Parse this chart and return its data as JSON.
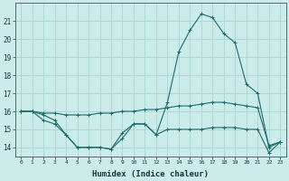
{
  "xlabel": "Humidex (Indice chaleur)",
  "background_color": "#ccecea",
  "grid_color": "#aad4d0",
  "line_color": "#1a6b6b",
  "x": [
    0,
    1,
    2,
    3,
    4,
    5,
    6,
    7,
    8,
    9,
    10,
    11,
    12,
    13,
    14,
    15,
    16,
    17,
    18,
    19,
    20,
    21,
    22,
    23
  ],
  "line_main": [
    16.0,
    16.0,
    15.8,
    15.5,
    14.7,
    14.0,
    14.0,
    14.0,
    13.9,
    14.8,
    15.3,
    15.3,
    14.7,
    16.5,
    19.3,
    20.5,
    21.4,
    21.2,
    20.3,
    19.8,
    17.5,
    17.0,
    14.0,
    14.3
  ],
  "line_upper": [
    16.0,
    16.0,
    15.9,
    15.9,
    15.8,
    15.8,
    15.8,
    15.9,
    15.9,
    16.0,
    16.0,
    16.1,
    16.1,
    16.2,
    16.3,
    16.3,
    16.4,
    16.5,
    16.5,
    16.4,
    16.3,
    16.2,
    14.1,
    14.3
  ],
  "line_lower": [
    16.0,
    16.0,
    15.5,
    15.3,
    14.7,
    14.0,
    14.0,
    14.0,
    13.9,
    14.5,
    15.3,
    15.3,
    14.7,
    15.0,
    15.0,
    15.0,
    15.0,
    15.1,
    15.1,
    15.1,
    15.0,
    15.0,
    13.7,
    14.3
  ],
  "ylim": [
    13.5,
    22.0
  ],
  "xlim": [
    -0.5,
    23.5
  ],
  "yticks": [
    14,
    15,
    16,
    17,
    18,
    19,
    20,
    21
  ],
  "xticks": [
    0,
    1,
    2,
    3,
    4,
    5,
    6,
    7,
    8,
    9,
    10,
    11,
    12,
    13,
    14,
    15,
    16,
    17,
    18,
    19,
    20,
    21,
    22,
    23
  ]
}
